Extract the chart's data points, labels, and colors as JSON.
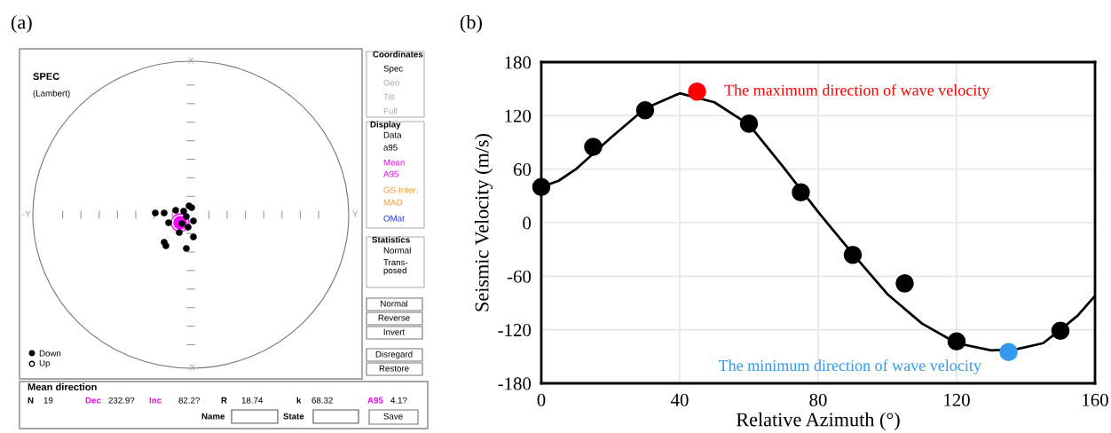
{
  "chart_data": [
    {
      "type": "other",
      "title": "(a)",
      "annotations": [
        "SPEC",
        "(Lambert)",
        "X",
        "-Y",
        "Y",
        "-X",
        "Down",
        "Up",
        "Mean direction",
        "N",
        "19",
        "Dec",
        "232.9?",
        "Inc",
        "82.2?",
        "R",
        "18.74",
        "k",
        "68.32",
        "A95",
        "4.1?",
        "Name",
        "State",
        "Save",
        "Coordinates",
        "Spec",
        "Geo",
        "Tilt",
        "Full",
        "Display",
        "Data",
        "a95",
        "Mean",
        "A95",
        "GS-Inter.",
        "MAD",
        "OMat",
        "Statistics",
        "Normal",
        "Trans-\nposed",
        "Normal",
        "Reverse",
        "Invert",
        "Disregard",
        "Restore"
      ]
    },
    {
      "type": "scatter",
      "title": "(b)",
      "xlabel": "Relative Azimuth (°)",
      "ylabel": "Seismic Velocity (m/s)",
      "xlim": [
        0,
        160
      ],
      "xticks": [
        0,
        40,
        80,
        120,
        160
      ],
      "ylim": [
        -180,
        180
      ],
      "yticks": [
        -180,
        -120,
        -60,
        0,
        60,
        120,
        180
      ],
      "grid": true,
      "marker": "circle",
      "series": [
        {
          "type": "line",
          "marker": "none",
          "color": "#000000",
          "x": [
            0,
            5,
            10,
            20,
            30,
            40,
            50,
            60,
            70,
            80,
            90,
            100,
            110,
            120,
            130,
            137,
            145,
            150,
            155,
            160
          ],
          "values": [
            40,
            47,
            60,
            95,
            128,
            145,
            135,
            110,
            62,
            12,
            -35,
            -80,
            -113,
            -135,
            -143,
            -142,
            -135,
            -120,
            -104,
            -82
          ]
        },
        {
          "color": "#000000",
          "x": [
            0,
            15,
            30,
            60,
            75,
            90,
            105,
            120,
            150
          ],
          "values": [
            40,
            85,
            126,
            111,
            34,
            -36,
            -68,
            -133,
            -121
          ]
        },
        {
          "name": "The maximum direction of wave velocity",
          "color": "#ff0000",
          "x": [
            45
          ],
          "values": [
            147
          ]
        },
        {
          "name": "The minimum direction of wave velocity",
          "color": "#3399ee",
          "x": [
            135
          ],
          "values": [
            -145
          ]
        }
      ]
    }
  ]
}
